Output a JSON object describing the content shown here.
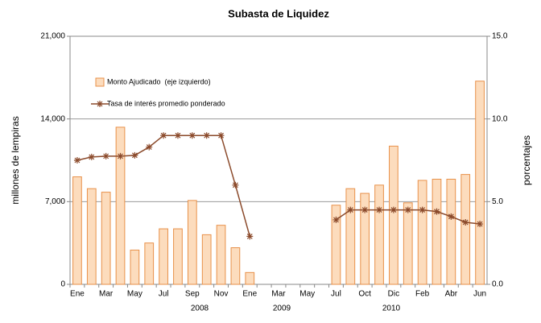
{
  "chart_data": {
    "type": "bar_line",
    "title": "Subasta de Liquidez",
    "ylabel": "millones de lempiras",
    "y2label": "porcentajes",
    "categories": [
      "Ene",
      null,
      "Mar",
      null,
      "May",
      null,
      "Jul",
      null,
      "Sep",
      null,
      "Nov",
      null,
      "Ene",
      null,
      "Mar",
      null,
      "May",
      null,
      "Jul",
      null,
      "Oct",
      null,
      "Dic",
      null,
      "Feb",
      null,
      "Abr",
      null,
      "Jun"
    ],
    "years": [
      "2008",
      "2009",
      "2010"
    ],
    "series": [
      {
        "name": "Monto Ajudicado  (eje izquierdo)",
        "kind": "bar",
        "color": "#fcdcbd",
        "edge": "#e8914a",
        "values": [
          9100,
          8100,
          7800,
          13300,
          2900,
          3500,
          4700,
          4700,
          7100,
          4200,
          5000,
          3100,
          1000,
          null,
          null,
          null,
          null,
          null,
          6700,
          8100,
          7700,
          8400,
          11700,
          6900,
          8800,
          8900,
          8900,
          9300,
          17200
        ]
      },
      {
        "name": "Tasa de interés promedio ponderado",
        "kind": "line",
        "axis": "y2",
        "color": "#8b4a2b",
        "values": [
          7.5,
          7.7,
          7.75,
          7.75,
          7.8,
          8.3,
          9.0,
          9.0,
          9.0,
          9.0,
          9.0,
          6.0,
          2.9,
          null,
          null,
          null,
          null,
          null,
          3.9,
          4.5,
          4.5,
          4.5,
          4.5,
          4.5,
          4.5,
          4.4,
          4.1,
          3.75,
          3.65
        ]
      }
    ],
    "ylim": [
      0,
      21000
    ],
    "yticks": [
      0,
      {
        "value": 7000,
        "label": "7,000"
      },
      {
        "value": 14000,
        "label": "14,000"
      },
      {
        "value": 21000,
        "label": "21,000"
      }
    ],
    "y2lim": [
      0,
      15
    ],
    "y2ticks": [
      {
        "value": 0,
        "label": "0.0"
      },
      {
        "value": 5,
        "label": "5.0"
      },
      {
        "value": 10,
        "label": "10.0"
      },
      {
        "value": 15,
        "label": "15.0"
      }
    ],
    "grid": true,
    "legend": "upper left"
  }
}
